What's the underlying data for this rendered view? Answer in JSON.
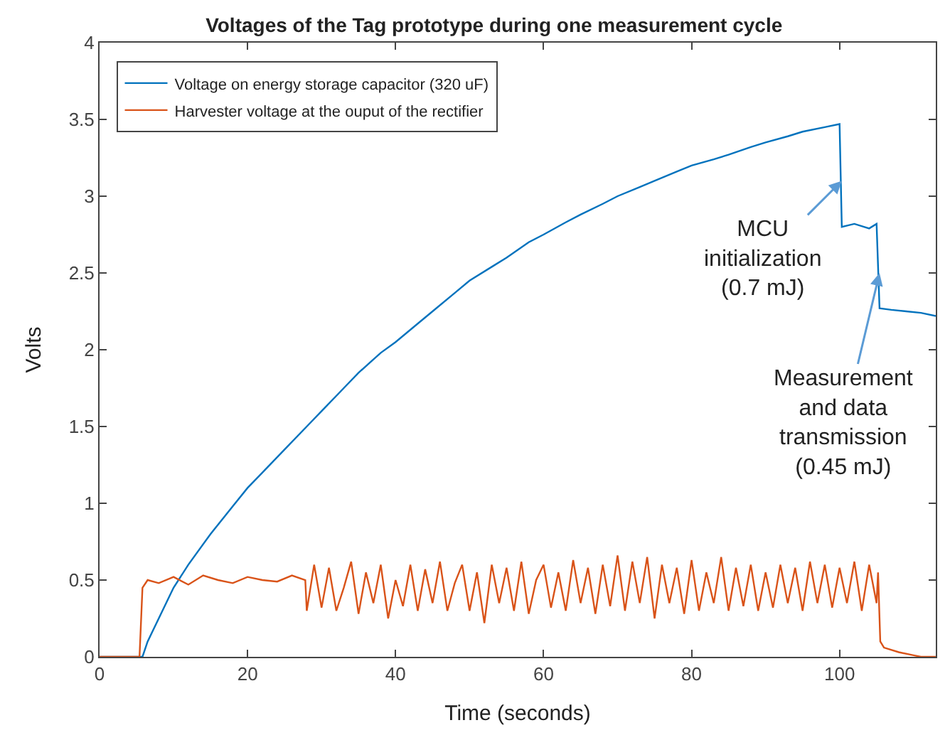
{
  "chart_data": {
    "type": "line",
    "title": "Voltages of the Tag prototype during one measurement cycle",
    "xlabel": "Time (seconds)",
    "ylabel": "Volts",
    "xlim": [
      0,
      113
    ],
    "ylim": [
      0,
      4
    ],
    "xticks": [
      0,
      20,
      40,
      60,
      80,
      100
    ],
    "yticks": [
      0,
      0.5,
      1,
      1.5,
      2,
      2.5,
      3,
      3.5,
      4
    ],
    "legend": "top left",
    "marker": "none",
    "line_style": "solid",
    "series": [
      {
        "name": "Voltage on energy storage capacitor (320 uF)",
        "color": "#0072bd",
        "x": [
          0,
          5.8,
          6.5,
          8,
          10,
          12,
          15,
          18,
          20,
          22,
          25,
          28,
          30,
          33,
          35,
          38,
          40,
          43,
          45,
          48,
          50,
          53,
          55,
          58,
          60,
          63,
          65,
          68,
          70,
          73,
          75,
          78,
          80,
          83,
          85,
          88,
          90,
          93,
          95,
          98,
          100,
          100.3,
          102,
          104,
          105,
          105.4,
          107,
          109,
          111,
          113
        ],
        "values": [
          0,
          0,
          0.1,
          0.25,
          0.45,
          0.6,
          0.8,
          0.98,
          1.1,
          1.2,
          1.35,
          1.5,
          1.6,
          1.75,
          1.85,
          1.98,
          2.05,
          2.17,
          2.25,
          2.37,
          2.45,
          2.54,
          2.6,
          2.7,
          2.75,
          2.83,
          2.88,
          2.95,
          3.0,
          3.06,
          3.1,
          3.16,
          3.2,
          3.24,
          3.27,
          3.32,
          3.35,
          3.39,
          3.42,
          3.45,
          3.47,
          2.8,
          2.82,
          2.79,
          2.82,
          2.27,
          2.26,
          2.25,
          2.24,
          2.22
        ]
      },
      {
        "name": "Harvester voltage at the ouput of the rectifier",
        "color": "#d95319",
        "x": [
          0,
          5.4,
          5.8,
          6.5,
          8,
          10,
          12,
          14,
          16,
          18,
          20,
          22,
          24,
          26,
          27.8,
          28,
          29,
          30,
          31,
          32,
          33,
          34,
          35,
          36,
          37,
          38,
          39,
          40,
          41,
          42,
          43,
          44,
          45,
          46,
          47,
          48,
          49,
          50,
          51,
          52,
          53,
          54,
          55,
          56,
          57,
          58,
          59,
          60,
          61,
          62,
          63,
          64,
          65,
          66,
          67,
          68,
          69,
          70,
          71,
          72,
          73,
          74,
          75,
          76,
          77,
          78,
          79,
          80,
          81,
          82,
          83,
          84,
          85,
          86,
          87,
          88,
          89,
          90,
          91,
          92,
          93,
          94,
          95,
          96,
          97,
          98,
          99,
          100,
          101,
          102,
          103,
          104,
          105,
          105.2,
          105.5,
          106,
          108,
          110,
          111,
          113
        ],
        "values": [
          0,
          0,
          0.45,
          0.5,
          0.48,
          0.52,
          0.47,
          0.53,
          0.5,
          0.48,
          0.52,
          0.5,
          0.49,
          0.53,
          0.5,
          0.3,
          0.6,
          0.32,
          0.58,
          0.3,
          0.45,
          0.62,
          0.28,
          0.55,
          0.35,
          0.6,
          0.25,
          0.5,
          0.33,
          0.6,
          0.3,
          0.57,
          0.35,
          0.62,
          0.3,
          0.48,
          0.6,
          0.3,
          0.55,
          0.22,
          0.6,
          0.35,
          0.58,
          0.3,
          0.62,
          0.28,
          0.5,
          0.6,
          0.32,
          0.55,
          0.3,
          0.63,
          0.35,
          0.58,
          0.28,
          0.6,
          0.33,
          0.66,
          0.3,
          0.62,
          0.35,
          0.65,
          0.25,
          0.6,
          0.35,
          0.58,
          0.28,
          0.63,
          0.3,
          0.55,
          0.35,
          0.65,
          0.3,
          0.58,
          0.33,
          0.6,
          0.3,
          0.55,
          0.32,
          0.6,
          0.35,
          0.58,
          0.3,
          0.62,
          0.35,
          0.6,
          0.32,
          0.58,
          0.35,
          0.62,
          0.3,
          0.6,
          0.35,
          0.55,
          0.1,
          0.06,
          0.03,
          0.01,
          0,
          0
        ]
      }
    ],
    "annotations": [
      {
        "text": "MCU initialization (0.7 mJ)",
        "x": 100.3,
        "y": 3.1
      },
      {
        "text": "Measurement and data transmission (0.45 mJ)",
        "x": 105.4,
        "y": 2.5
      }
    ]
  }
}
